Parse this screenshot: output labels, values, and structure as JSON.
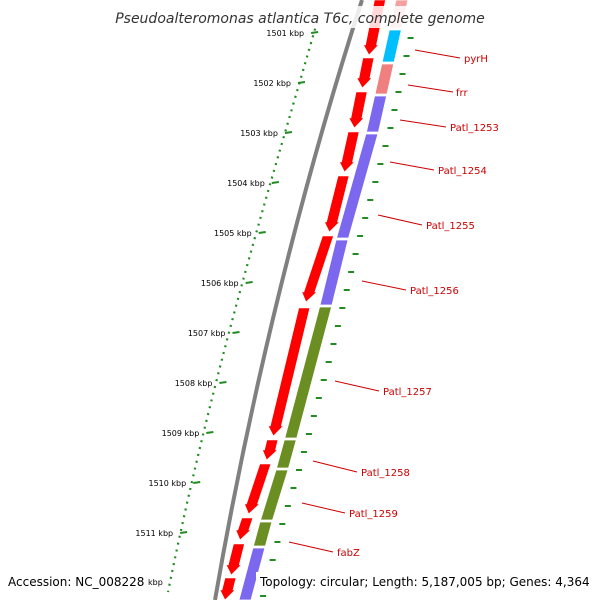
{
  "title": "Pseudoalteromonas atlantica T6c, complete genome",
  "accession": "Accession: NC_008228",
  "footer_info": "Topology: circular; Length: 5,187,005 bp; Genes: 4,364",
  "kbp_unit": "kbp",
  "ticks": [
    {
      "kb": 1501,
      "label": "1501 kbp"
    },
    {
      "kb": 1502,
      "label": "1502 kbp"
    },
    {
      "kb": 1503,
      "label": "1503 kbp"
    },
    {
      "kb": 1504,
      "label": "1504 kbp"
    },
    {
      "kb": 1505,
      "label": "1505 kbp"
    },
    {
      "kb": 1506,
      "label": "1506 kbp"
    },
    {
      "kb": 1507,
      "label": "1507 kbp"
    },
    {
      "kb": 1508,
      "label": "1508 kbp"
    },
    {
      "kb": 1509,
      "label": "1509 kbp"
    },
    {
      "kb": 1510,
      "label": "1510 kbp"
    },
    {
      "kb": 1511,
      "label": "1511 kbp"
    }
  ],
  "genes": [
    {
      "name": "pyrH",
      "color": "#00bfff"
    },
    {
      "name": "frr",
      "color": "#f08080"
    },
    {
      "name": "Patl_1253",
      "color": "#7b68ee"
    },
    {
      "name": "Patl_1254",
      "color": "#7b68ee"
    },
    {
      "name": "Patl_1255",
      "color": "#7b68ee"
    },
    {
      "name": "Patl_1256",
      "color": "#6b8e23"
    },
    {
      "name": "Patl_1257",
      "color": "#6b8e23"
    },
    {
      "name": "Patl_1258",
      "color": "#6b8e23"
    },
    {
      "name": "Patl_1259",
      "color": "#6b8e23"
    },
    {
      "name": "fabZ",
      "color": "#7b68ee"
    }
  ],
  "colors": {
    "cds": "#ff0000",
    "backbone": "#808080",
    "tick": "#228b22",
    "label": "#cc0000"
  }
}
